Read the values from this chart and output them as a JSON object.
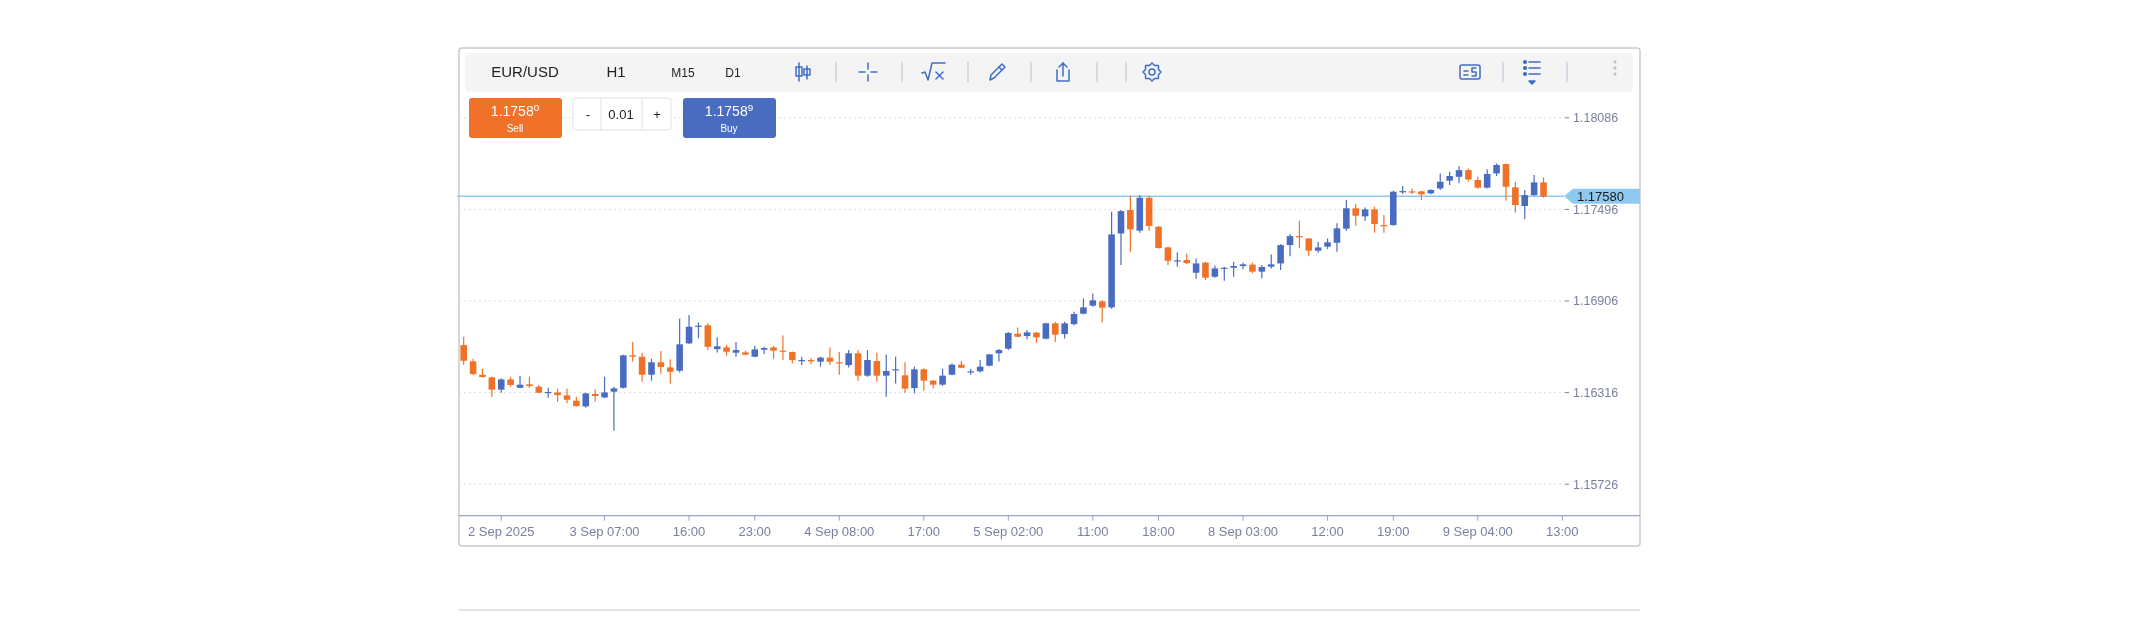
{
  "chart_data": {
    "type": "candlestick",
    "title": "EUR/USD",
    "categories": [
      null,
      null,
      null,
      null,
      "2 Sep 2025",
      null,
      null,
      null,
      null,
      null,
      null,
      null,
      null,
      null,
      null,
      "3 Sep 07:00",
      null,
      null,
      null,
      null,
      null,
      null,
      null,
      null,
      "16:00",
      null,
      null,
      null,
      null,
      null,
      null,
      "23:00",
      null,
      null,
      null,
      null,
      null,
      null,
      null,
      null,
      "4 Sep 08:00",
      null,
      null,
      null,
      null,
      null,
      null,
      null,
      null,
      "17:00",
      null,
      null,
      null,
      null,
      null,
      null,
      null,
      null,
      "5 Sep 02:00",
      null,
      null,
      null,
      null,
      null,
      null,
      null,
      null,
      "11:00",
      null,
      null,
      null,
      null,
      null,
      null,
      "18:00",
      null,
      null,
      null,
      null,
      null,
      null,
      null,
      null,
      "8 Sep 03:00",
      null,
      null,
      null,
      null,
      null,
      null,
      null,
      null,
      "12:00",
      null,
      null,
      null,
      null,
      null,
      null,
      "19:00",
      null,
      null,
      null,
      null,
      null,
      null,
      null,
      null,
      "9 Sep 04:00",
      null,
      null,
      null,
      null,
      null,
      null,
      null,
      null,
      "13:00"
    ],
    "ohlc": [
      [
        1.16622,
        1.16676,
        1.16493,
        1.16521
      ],
      [
        1.16517,
        1.16534,
        1.16427,
        1.16435
      ],
      [
        1.16431,
        1.1647,
        1.16414,
        1.16416
      ],
      [
        1.16414,
        1.16418,
        1.16289,
        1.16335
      ],
      [
        1.16335,
        1.16408,
        1.16315,
        1.16401
      ],
      [
        1.16401,
        1.16418,
        1.16354,
        1.16365
      ],
      [
        1.16347,
        1.16423,
        1.16345,
        1.16367
      ],
      [
        1.16369,
        1.16418,
        1.16347,
        1.16358
      ],
      [
        1.16354,
        1.16365,
        1.16311,
        1.16315
      ],
      [
        1.16313,
        1.16347,
        1.16283,
        1.1632
      ],
      [
        1.16317,
        1.16341,
        1.16257,
        1.163
      ],
      [
        1.16298,
        1.16343,
        1.16247,
        1.1627
      ],
      [
        1.16264,
        1.16289,
        1.16225,
        1.16229
      ],
      [
        1.16227,
        1.16315,
        1.16219,
        1.16311
      ],
      [
        1.16307,
        1.16337,
        1.16257,
        1.16294
      ],
      [
        1.16285,
        1.16418,
        1.16279,
        1.16317
      ],
      [
        1.16322,
        1.16354,
        1.1607,
        1.16343
      ],
      [
        1.16347,
        1.1656,
        1.16343,
        1.16556
      ],
      [
        1.16556,
        1.16642,
        1.16515,
        1.16547
      ],
      [
        1.16547,
        1.16573,
        1.16386,
        1.16431
      ],
      [
        1.16431,
        1.16534,
        1.16393,
        1.16511
      ],
      [
        1.16511,
        1.16584,
        1.16438,
        1.16481
      ],
      [
        1.16478,
        1.1653,
        1.16375,
        1.1645
      ],
      [
        1.16457,
        1.16794,
        1.16446,
        1.16627
      ],
      [
        1.16633,
        1.16815,
        1.16629,
        1.1674
      ],
      [
        1.1674,
        1.16768,
        1.16665,
        1.16747
      ],
      [
        1.16749,
        1.16762,
        1.1659,
        1.16611
      ],
      [
        1.16596,
        1.16672,
        1.16575,
        1.16614
      ],
      [
        1.16607,
        1.16622,
        1.16554,
        1.16579
      ],
      [
        1.16573,
        1.16642,
        1.16547,
        1.1659
      ],
      [
        1.16575,
        1.16586,
        1.16556,
        1.1656
      ],
      [
        1.16547,
        1.16616,
        1.16543,
        1.16594
      ],
      [
        1.16592,
        1.16611,
        1.16564,
        1.16603
      ],
      [
        1.16607,
        1.16616,
        1.16534,
        1.16586
      ],
      [
        1.16586,
        1.16684,
        1.16526,
        1.16579
      ],
      [
        1.16577,
        1.16581,
        1.16504,
        1.16526
      ],
      [
        1.16521,
        1.16547,
        1.16493,
        1.16526
      ],
      [
        1.16526,
        1.16539,
        1.16498,
        1.16517
      ],
      [
        1.16515,
        1.16547,
        1.16483,
        1.16541
      ],
      [
        1.16541,
        1.16607,
        1.16496,
        1.16515
      ],
      [
        1.16511,
        1.16577,
        1.16431,
        1.16504
      ],
      [
        1.16493,
        1.1659,
        1.16478,
        1.16569
      ],
      [
        1.16569,
        1.1659,
        1.16393,
        1.16425
      ],
      [
        1.16425,
        1.1659,
        1.16418,
        1.16526
      ],
      [
        1.16519,
        1.16573,
        1.16386,
        1.16425
      ],
      [
        1.16425,
        1.16562,
        1.16289,
        1.16455
      ],
      [
        1.16459,
        1.16547,
        1.16375,
        1.16466
      ],
      [
        1.16427,
        1.16511,
        1.16315,
        1.16341
      ],
      [
        1.16345,
        1.16483,
        1.16311,
        1.16466
      ],
      [
        1.16466,
        1.16472,
        1.16328,
        1.16393
      ],
      [
        1.16393,
        1.16397,
        1.16343,
        1.16367
      ],
      [
        1.16367,
        1.1647,
        1.1636,
        1.16425
      ],
      [
        1.16431,
        1.16504,
        1.16427,
        1.16496
      ],
      [
        1.16496,
        1.16519,
        1.16472,
        1.16476
      ],
      [
        1.16446,
        1.1647,
        1.16431,
        1.16453
      ],
      [
        1.16453,
        1.16526,
        1.16446,
        1.16483
      ],
      [
        1.16489,
        1.16564,
        1.16485,
        1.16562
      ],
      [
        1.16569,
        1.16596,
        1.16517,
        1.1659
      ],
      [
        1.16599,
        1.16706,
        1.1659,
        1.167
      ],
      [
        1.16695,
        1.16736,
        1.16672,
        1.16676
      ],
      [
        1.1668,
        1.16719,
        1.16659,
        1.16704
      ],
      [
        1.16702,
        1.16708,
        1.16637,
        1.16672
      ],
      [
        1.16663,
        1.16766,
        1.16659,
        1.16762
      ],
      [
        1.16762,
        1.1677,
        1.16642,
        1.16689
      ],
      [
        1.16693,
        1.16773,
        1.16665,
        1.16762
      ],
      [
        1.16757,
        1.16837,
        1.16749,
        1.16822
      ],
      [
        1.16824,
        1.16923,
        1.1682,
        1.16865
      ],
      [
        1.16876,
        1.16955,
        1.16869,
        1.1691
      ],
      [
        1.16903,
        1.16912,
        1.16768,
        1.16863
      ],
      [
        1.16865,
        1.17481,
        1.16856,
        1.17335
      ],
      [
        1.17341,
        1.17492,
        1.17138,
        1.17485
      ],
      [
        1.17492,
        1.17584,
        1.17223,
        1.17367
      ],
      [
        1.17359,
        1.17588,
        1.17346,
        1.17571
      ],
      [
        1.17571,
        1.17584,
        1.17359,
        1.17389
      ],
      [
        1.17384,
        1.17389,
        1.17243,
        1.17247
      ],
      [
        1.17251,
        1.17256,
        1.17138,
        1.17165
      ],
      [
        1.17163,
        1.17219,
        1.17127,
        1.17168
      ],
      [
        1.1717,
        1.17211,
        1.17144,
        1.1715
      ],
      [
        1.17088,
        1.1718,
        1.17049,
        1.17148
      ],
      [
        1.17153,
        1.17159,
        1.17041,
        1.17056
      ],
      [
        1.17062,
        1.17135,
        1.17056,
        1.17116
      ],
      [
        1.17116,
        1.17127,
        1.17037,
        1.1712
      ],
      [
        1.1712,
        1.17159,
        1.17062,
        1.17131
      ],
      [
        1.17131,
        1.17153,
        1.1711,
        1.17142
      ],
      [
        1.1714,
        1.17153,
        1.17084,
        1.17095
      ],
      [
        1.17095,
        1.17138,
        1.17052,
        1.17125
      ],
      [
        1.17127,
        1.17206,
        1.17116,
        1.17142
      ],
      [
        1.17148,
        1.17272,
        1.17105,
        1.17266
      ],
      [
        1.17266,
        1.17337,
        1.17195,
        1.17324
      ],
      [
        1.17324,
        1.17423,
        1.17245,
        1.17316
      ],
      [
        1.17309,
        1.17309,
        1.17195,
        1.1723
      ],
      [
        1.1723,
        1.17288,
        1.17217,
        1.17251
      ],
      [
        1.17256,
        1.17309,
        1.17241,
        1.17284
      ],
      [
        1.17281,
        1.17406,
        1.17223,
        1.17374
      ],
      [
        1.17372,
        1.17556,
        1.17359,
        1.17503
      ],
      [
        1.17503,
        1.1753,
        1.17391,
        1.17455
      ],
      [
        1.17451,
        1.17509,
        1.17423,
        1.17496
      ],
      [
        1.17496,
        1.17513,
        1.17346,
        1.17402
      ],
      [
        1.17395,
        1.1746,
        1.17346,
        1.17389
      ],
      [
        1.17395,
        1.17616,
        1.17391,
        1.1761
      ],
      [
        1.17606,
        1.17646,
        1.17595,
        1.17614
      ],
      [
        1.17612,
        1.17631,
        1.17595,
        1.17606
      ],
      [
        1.17612,
        1.17616,
        1.17556,
        1.17593
      ],
      [
        1.17599,
        1.17625,
        1.17593,
        1.17621
      ],
      [
        1.17631,
        1.17728,
        1.17621,
        1.17674
      ],
      [
        1.17681,
        1.17739,
        1.17653,
        1.17711
      ],
      [
        1.17706,
        1.17775,
        1.17664,
        1.17749
      ],
      [
        1.17749,
        1.1776,
        1.17676,
        1.17689
      ],
      [
        1.17685,
        1.17706,
        1.17629,
        1.17636
      ],
      [
        1.17636,
        1.17754,
        1.17631,
        1.17724
      ],
      [
        1.17728,
        1.17792,
        1.17711,
        1.17782
      ],
      [
        1.17788,
        1.17792,
        1.17552,
        1.17642
      ],
      [
        1.17638,
        1.17674,
        1.17475,
        1.17524
      ],
      [
        1.17518,
        1.17621,
        1.17434,
        1.17588
      ],
      [
        1.17588,
        1.17717,
        1.17584,
        1.1767
      ],
      [
        1.1767,
        1.17702,
        1.17571,
        1.1758
      ],
      null,
      null
    ],
    "colors": [
      "#ef7228",
      "#ef7228",
      "#ef7228",
      "#ef7228",
      "#4a6cc0",
      "#ef7228",
      "#4a6cc0",
      "#ef7228",
      "#ef7228",
      "#4a6cc0",
      "#ef7228",
      "#ef7228",
      "#ef7228",
      "#4a6cc0",
      "#ef7228",
      "#4a6cc0",
      "#4a6cc0",
      "#4a6cc0",
      "#ef7228",
      "#ef7228",
      "#4a6cc0",
      "#ef7228",
      "#ef7228",
      "#4a6cc0",
      "#4a6cc0",
      "#4a6cc0",
      "#ef7228",
      "#4a6cc0",
      "#ef7228",
      "#4a6cc0",
      "#ef7228",
      "#4a6cc0",
      "#4a6cc0",
      "#ef7228",
      "#ef7228",
      "#ef7228",
      "#4a6cc0",
      "#ef7228",
      "#4a6cc0",
      "#ef7228",
      "#ef7228",
      "#4a6cc0",
      "#ef7228",
      "#4a6cc0",
      "#ef7228",
      "#4a6cc0",
      "#4a6cc0",
      "#ef7228",
      "#4a6cc0",
      "#ef7228",
      "#ef7228",
      "#4a6cc0",
      "#4a6cc0",
      "#ef7228",
      "#4a6cc0",
      "#4a6cc0",
      "#4a6cc0",
      "#4a6cc0",
      "#4a6cc0",
      "#ef7228",
      "#4a6cc0",
      "#ef7228",
      "#4a6cc0",
      "#ef7228",
      "#4a6cc0",
      "#4a6cc0",
      "#4a6cc0",
      "#4a6cc0",
      "#ef7228",
      "#4a6cc0",
      "#4a6cc0",
      "#ef7228",
      "#4a6cc0",
      "#ef7228",
      "#ef7228",
      "#ef7228",
      "#4a6cc0",
      "#ef7228",
      "#4a6cc0",
      "#ef7228",
      "#4a6cc0",
      "#4a6cc0",
      "#4a6cc0",
      "#4a6cc0",
      "#ef7228",
      "#4a6cc0",
      "#4a6cc0",
      "#4a6cc0",
      "#4a6cc0",
      "#ef7228",
      "#ef7228",
      "#4a6cc0",
      "#4a6cc0",
      "#4a6cc0",
      "#4a6cc0",
      "#ef7228",
      "#4a6cc0",
      "#ef7228",
      "#ef7228",
      "#4a6cc0",
      "#4a6cc0",
      "#ef7228",
      "#ef7228",
      "#4a6cc0",
      "#4a6cc0",
      "#4a6cc0",
      "#4a6cc0",
      "#ef7228",
      "#ef7228",
      "#4a6cc0",
      "#4a6cc0",
      "#ef7228",
      "#ef7228",
      "#4a6cc0",
      "#4a6cc0",
      "#ef7228",
      null,
      null
    ],
    "ylim": [
      1.15523,
      1.18086
    ],
    "yticks": [
      1.15726,
      1.16316,
      1.16906,
      1.17496,
      1.18086
    ],
    "grid": "y",
    "ref_lines": [
      {
        "axis": "y",
        "value": 1.1758,
        "label": "1.17580",
        "color": "#8ec9f0"
      }
    ],
    "annotations": [
      "H1",
      "M15",
      "D1",
      "1.1758$^{0}$",
      "Sell",
      "-",
      "0.01",
      "+",
      "1.1758$^{9}$",
      "Buy"
    ]
  }
}
